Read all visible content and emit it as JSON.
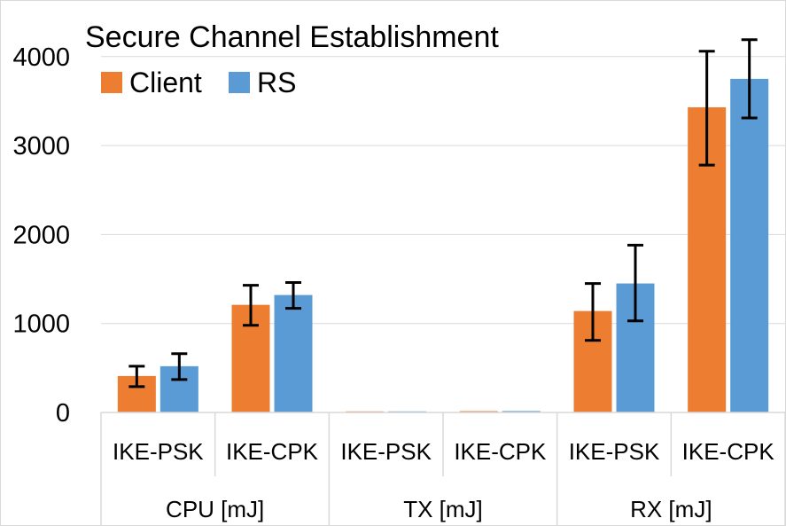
{
  "chart_data": {
    "type": "bar",
    "title": "Secure Channel Establishment",
    "xlabel": "",
    "ylabel": "",
    "ylim": [
      0,
      4200
    ],
    "yticks": [
      0,
      1000,
      2000,
      3000,
      4000
    ],
    "grid": true,
    "legend_position": "top-left",
    "groups": [
      "CPU [mJ]",
      "TX [mJ]",
      "RX [mJ]"
    ],
    "categories": [
      "IKE-PSK",
      "IKE-CPK",
      "IKE-PSK",
      "IKE-CPK",
      "IKE-PSK",
      "IKE-CPK"
    ],
    "series": [
      {
        "name": "Client",
        "color": "#ED7D31",
        "values": [
          410,
          1210,
          12,
          15,
          1140,
          3430
        ],
        "err_low": [
          290,
          980,
          10,
          12,
          810,
          2780
        ],
        "err_high": [
          520,
          1430,
          14,
          18,
          1450,
          4060
        ]
      },
      {
        "name": "RS",
        "color": "#5B9BD5",
        "values": [
          520,
          1320,
          12,
          16,
          1450,
          3750
        ],
        "err_low": [
          370,
          1170,
          10,
          13,
          1030,
          3310
        ],
        "err_high": [
          660,
          1460,
          14,
          19,
          1880,
          4190
        ]
      }
    ]
  }
}
